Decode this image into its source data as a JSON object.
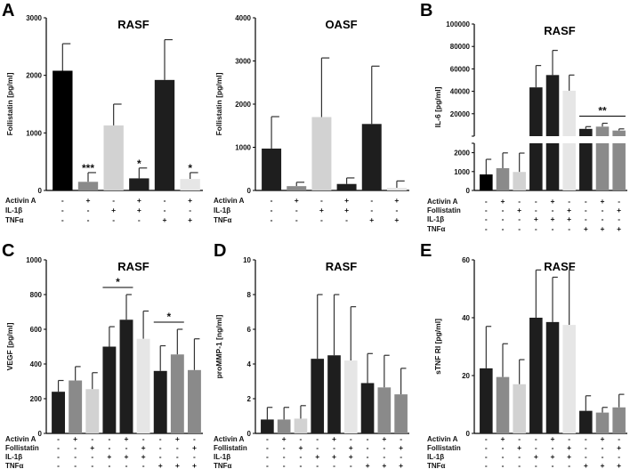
{
  "chart_data": [
    {
      "panel": "A",
      "type": "bar",
      "title": "RASF",
      "ylabel": "Follistatin [pg/ml]",
      "ylim": [
        0,
        3000
      ],
      "yticks": [
        0,
        1000,
        2000,
        3000
      ],
      "values": [
        2080,
        150,
        1130,
        210,
        1920,
        200
      ],
      "error_upper": [
        2550,
        310,
        1500,
        390,
        2620,
        310
      ],
      "colors": [
        "#000000",
        "#8a8a8a",
        "#d2d2d2",
        "#1e1e1e",
        "#1e1e1e",
        "#e6e6e6"
      ],
      "annotations": [
        {
          "bar": 1,
          "text": "***"
        },
        {
          "bar": 3,
          "text": "*"
        },
        {
          "bar": 5,
          "text": "*"
        }
      ],
      "treatments": [
        {
          "label": "Activin A",
          "signs": [
            "-",
            "+",
            "-",
            "+",
            "-",
            "+"
          ]
        },
        {
          "label": "IL-1β",
          "signs": [
            "-",
            "-",
            "+",
            "+",
            "-",
            "-"
          ]
        },
        {
          "label": "TNFα",
          "signs": [
            "-",
            "-",
            "-",
            "-",
            "+",
            "+"
          ]
        }
      ]
    },
    {
      "panel": "",
      "type": "bar",
      "title": "OASF",
      "ylabel": "Follistatin [pg/ml]",
      "ylim": [
        0,
        4000
      ],
      "yticks": [
        0,
        1000,
        2000,
        3000,
        4000
      ],
      "values": [
        970,
        100,
        1700,
        150,
        1540,
        60
      ],
      "error_upper": [
        1710,
        190,
        3070,
        290,
        2880,
        220
      ],
      "colors": [
        "#1e1e1e",
        "#8a8a8a",
        "#d2d2d2",
        "#1e1e1e",
        "#1e1e1e",
        "#e6e6e6"
      ],
      "annotations": [],
      "treatments": [
        {
          "label": "Activin A",
          "signs": [
            "-",
            "+",
            "-",
            "+",
            "-",
            "+"
          ]
        },
        {
          "label": "IL-1β",
          "signs": [
            "-",
            "-",
            "+",
            "+",
            "-",
            "-"
          ]
        },
        {
          "label": "TNFα",
          "signs": [
            "-",
            "-",
            "-",
            "-",
            "+",
            "+"
          ]
        }
      ]
    },
    {
      "panel": "B",
      "type": "bar",
      "title": "RASF",
      "ylabel": "IL-6 [pg/ml]",
      "ylim": [
        0,
        100000
      ],
      "broken_axis": [
        2500,
        0
      ],
      "yticks_lower": [
        0,
        1000,
        2000
      ],
      "yticks_upper": [
        20000,
        40000,
        60000,
        80000,
        100000
      ],
      "values": [
        850,
        1180,
        980,
        43500,
        54500,
        40500,
        6500,
        8500,
        5000
      ],
      "error_upper": [
        1650,
        1990,
        1980,
        63000,
        76500,
        54500,
        8500,
        11500,
        6500
      ],
      "colors": [
        "#000000",
        "#8a8a8a",
        "#d2d2d2",
        "#1e1e1e",
        "#1e1e1e",
        "#e6e6e6",
        "#1e1e1e",
        "#8a8a8a",
        "#8a8a8a"
      ],
      "annotations": [
        {
          "from": 6,
          "to": 8,
          "text": "**"
        }
      ],
      "treatments": [
        {
          "label": "Activin A",
          "signs": [
            "-",
            "+",
            "-",
            "-",
            "+",
            "-",
            "-",
            "+",
            "-"
          ]
        },
        {
          "label": "Follistatin",
          "signs": [
            "-",
            "-",
            "+",
            "-",
            "-",
            "+",
            "-",
            "-",
            "+"
          ]
        },
        {
          "label": "IL-1β",
          "signs": [
            "-",
            "-",
            "-",
            "+",
            "+",
            "+",
            "-",
            "-",
            "-"
          ]
        },
        {
          "label": "TNFα",
          "signs": [
            "-",
            "-",
            "-",
            "-",
            "-",
            "-",
            "+",
            "+",
            "+"
          ]
        }
      ]
    },
    {
      "panel": "C",
      "type": "bar",
      "title": "RASF",
      "ylabel": "VEGF [pg/ml]",
      "ylim": [
        0,
        1000
      ],
      "yticks": [
        0,
        200,
        400,
        600,
        800,
        1000
      ],
      "values": [
        240,
        305,
        255,
        500,
        655,
        545,
        360,
        455,
        365
      ],
      "error_upper": [
        305,
        385,
        350,
        615,
        800,
        705,
        505,
        600,
        545
      ],
      "colors": [
        "#1e1e1e",
        "#8a8a8a",
        "#d2d2d2",
        "#1e1e1e",
        "#1e1e1e",
        "#e6e6e6",
        "#1e1e1e",
        "#8a8a8a",
        "#8a8a8a"
      ],
      "annotations": [
        {
          "from": 3,
          "to": 4,
          "text": "*"
        },
        {
          "from": 6,
          "to": 7,
          "text": "*"
        }
      ],
      "treatments": [
        {
          "label": "Activin A",
          "signs": [
            "-",
            "+",
            "-",
            "-",
            "+",
            "-",
            "-",
            "+",
            "-"
          ]
        },
        {
          "label": "Follistatin",
          "signs": [
            "-",
            "-",
            "+",
            "-",
            "-",
            "+",
            "-",
            "-",
            "+"
          ]
        },
        {
          "label": "IL-1β",
          "signs": [
            "-",
            "-",
            "-",
            "+",
            "+",
            "+",
            "-",
            "-",
            "-"
          ]
        },
        {
          "label": "TNFα",
          "signs": [
            "-",
            "-",
            "-",
            "-",
            "-",
            "-",
            "+",
            "+",
            "+"
          ]
        }
      ]
    },
    {
      "panel": "D",
      "type": "bar",
      "title": "RASF",
      "ylabel": "proMMP-1 [ng/ml]",
      "ylim": [
        0,
        10
      ],
      "yticks": [
        0,
        2,
        4,
        6,
        8,
        10
      ],
      "values": [
        0.8,
        0.8,
        0.85,
        4.3,
        4.5,
        4.2,
        2.9,
        2.65,
        2.25
      ],
      "error_upper": [
        1.5,
        1.5,
        1.6,
        8.0,
        8.0,
        7.3,
        4.6,
        4.5,
        3.75
      ],
      "colors": [
        "#1e1e1e",
        "#8a8a8a",
        "#d2d2d2",
        "#1e1e1e",
        "#1e1e1e",
        "#e6e6e6",
        "#1e1e1e",
        "#8a8a8a",
        "#8a8a8a"
      ],
      "annotations": [],
      "treatments": [
        {
          "label": "Activin A",
          "signs": [
            "-",
            "+",
            "-",
            "-",
            "+",
            "-",
            "-",
            "+",
            "-"
          ]
        },
        {
          "label": "Follistatin",
          "signs": [
            "-",
            "-",
            "+",
            "-",
            "-",
            "+",
            "-",
            "-",
            "+"
          ]
        },
        {
          "label": "IL-1β",
          "signs": [
            "-",
            "-",
            "-",
            "+",
            "+",
            "+",
            "-",
            "-",
            "-"
          ]
        },
        {
          "label": "TNFα",
          "signs": [
            "-",
            "-",
            "-",
            "-",
            "-",
            "-",
            "+",
            "+",
            "+"
          ]
        }
      ]
    },
    {
      "panel": "E",
      "type": "bar",
      "title": "RASF",
      "ylabel": "sTNF RI [pg/ml]",
      "ylim": [
        0,
        60
      ],
      "yticks": [
        0,
        20,
        40,
        60
      ],
      "values": [
        22.5,
        19.5,
        17,
        40,
        38.5,
        37.5,
        7.8,
        7.2,
        9
      ],
      "error_upper": [
        37,
        31,
        25.5,
        56.5,
        54,
        56.5,
        13,
        9,
        13.5
      ],
      "colors": [
        "#1e1e1e",
        "#8a8a8a",
        "#d2d2d2",
        "#1e1e1e",
        "#1e1e1e",
        "#e6e6e6",
        "#1e1e1e",
        "#8a8a8a",
        "#8a8a8a"
      ],
      "annotations": [],
      "treatments": [
        {
          "label": "Activin A",
          "signs": [
            "-",
            "+",
            "-",
            "-",
            "+",
            "-",
            "-",
            "+",
            "-"
          ]
        },
        {
          "label": "Follistatin",
          "signs": [
            "-",
            "-",
            "+",
            "-",
            "-",
            "+",
            "-",
            "-",
            "+"
          ]
        },
        {
          "label": "IL-1β",
          "signs": [
            "-",
            "-",
            "-",
            "+",
            "+",
            "+",
            "-",
            "-",
            "-"
          ]
        },
        {
          "label": "TNFα",
          "signs": [
            "-",
            "-",
            "-",
            "-",
            "-",
            "-",
            "+",
            "+",
            "+"
          ]
        }
      ]
    }
  ]
}
